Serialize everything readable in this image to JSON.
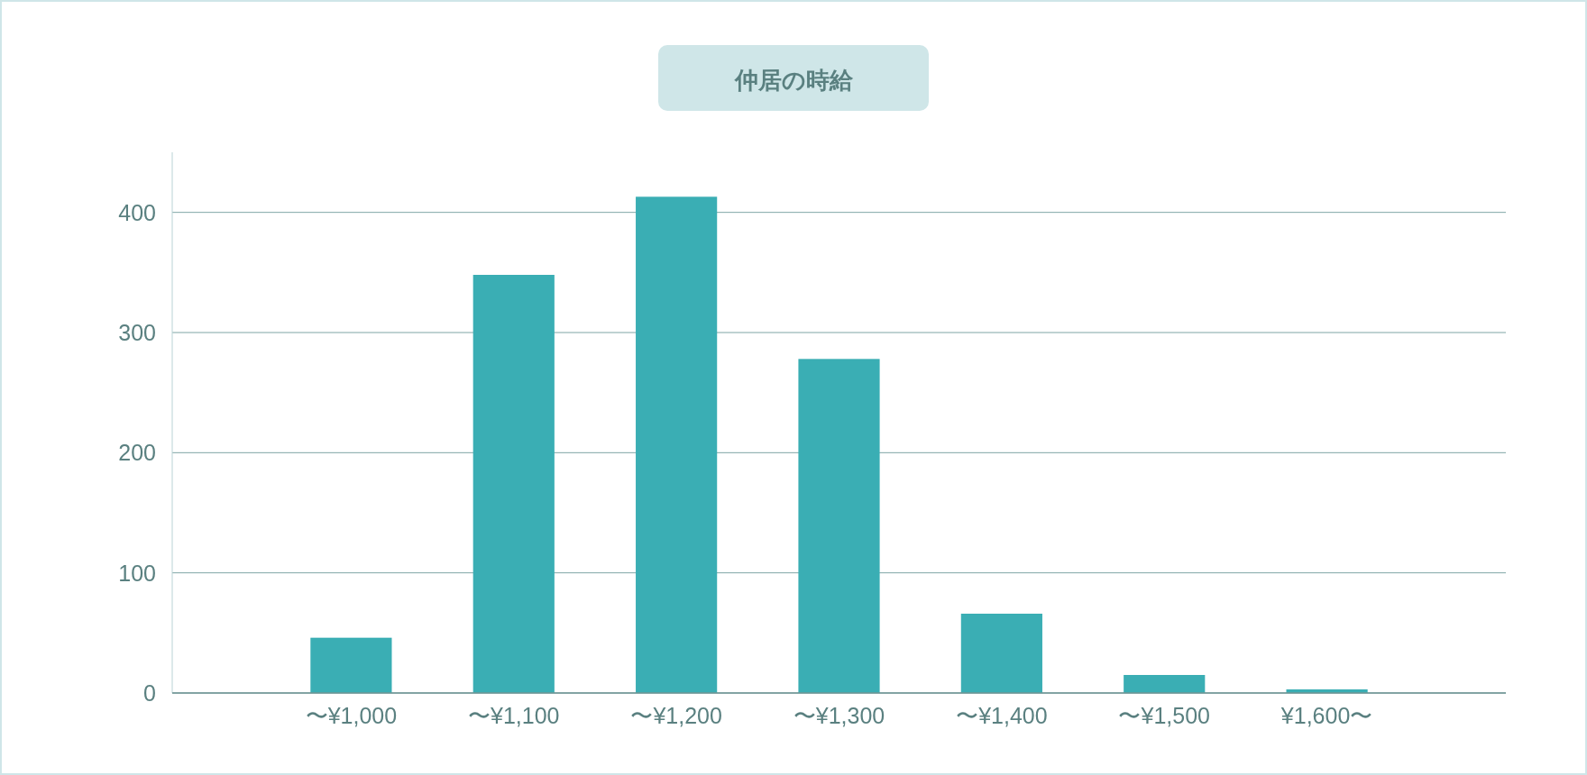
{
  "chart_data": {
    "type": "bar",
    "title": "仲居の時給",
    "categories": [
      "〜¥1,000",
      "〜¥1,100",
      "〜¥1,200",
      "〜¥1,300",
      "〜¥1,400",
      "〜¥1,500",
      "¥1,600〜"
    ],
    "values": [
      46,
      348,
      413,
      278,
      66,
      15,
      3
    ],
    "color": "#3aaeb4",
    "ylim": [
      0,
      450
    ],
    "yticks": [
      0,
      100,
      200,
      300,
      400
    ],
    "grid": "y"
  }
}
